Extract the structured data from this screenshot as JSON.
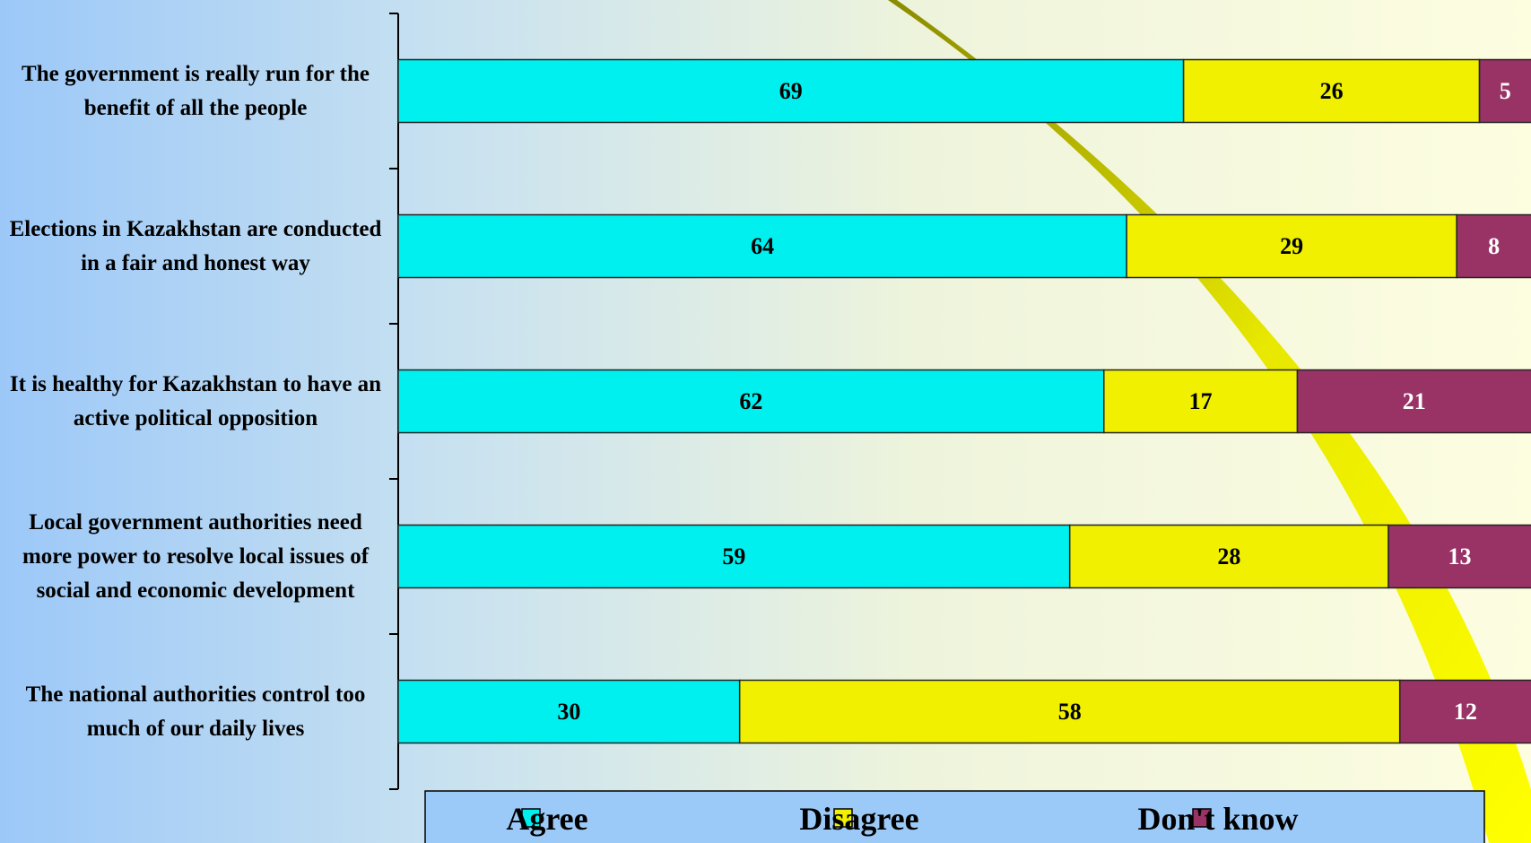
{
  "chart_data": {
    "type": "stacked-bar-horizontal",
    "categories": [
      "The government is really run for the benefit of all the people",
      "Elections in Kazakhstan are conducted in a fair and honest way",
      "It is healthy for Kazakhstan to have an active political opposition",
      "Local government authorities need more power to resolve local issues of social and economic development",
      "The national authorities control too much of our daily lives"
    ],
    "series": [
      {
        "name": "Agree",
        "color": "#00f0f0",
        "values": [
          69,
          64,
          62,
          59,
          30
        ]
      },
      {
        "name": "Disagree",
        "color": "#f0f000",
        "values": [
          26,
          29,
          17,
          28,
          58
        ]
      },
      {
        "name": "Don't know",
        "color": "#993366",
        "values": [
          5,
          8,
          21,
          13,
          12
        ]
      }
    ],
    "xlim": [
      0,
      100
    ],
    "legend": "bottom"
  }
}
